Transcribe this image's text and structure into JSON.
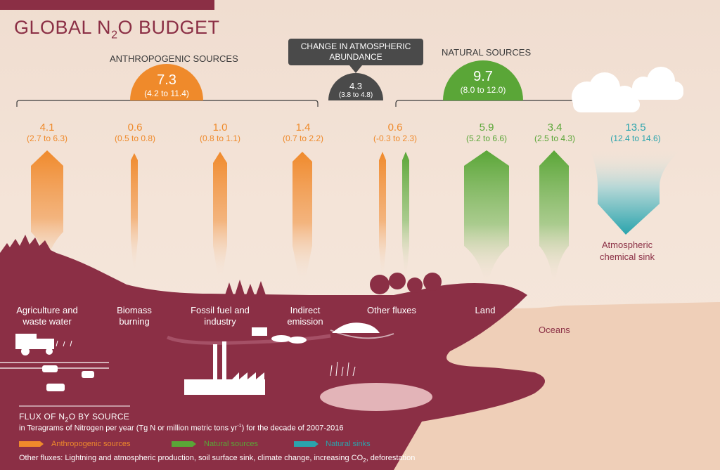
{
  "title": {
    "main": "GLOBAL N",
    "sub": "2",
    "rest": "O BUDGET"
  },
  "groups": {
    "anthropogenic": {
      "label": "ANTHROPOGENIC SOURCES",
      "value": "7.3",
      "range": "(4.2 to 11.4)"
    },
    "natural": {
      "label": "NATURAL SOURCES",
      "value": "9.7",
      "range": "(8.0 to 12.0)"
    },
    "change": {
      "label": "CHANGE IN ATMOSPHERIC ABUNDANCE",
      "value": "4.3",
      "range": "(3.8 to 4.8)"
    }
  },
  "fluxes": [
    {
      "id": "agriculture",
      "value": "4.1",
      "range": "(2.7 to 6.3)",
      "label": "Agriculture and\nwaste water",
      "type": "anthropogenic",
      "num": 4.1
    },
    {
      "id": "biomass",
      "value": "0.6",
      "range": "(0.5 to 0.8)",
      "label": "Biomass\nburning",
      "type": "anthropogenic",
      "num": 0.6
    },
    {
      "id": "fossil",
      "value": "1.0",
      "range": "(0.8 to 1.1)",
      "label": "Fossil fuel and\nindustry",
      "type": "anthropogenic",
      "num": 1.0
    },
    {
      "id": "indirect",
      "value": "1.4",
      "range": "(0.7 to 2.2)",
      "label": "Indirect\nemission",
      "type": "anthropogenic",
      "num": 1.4
    },
    {
      "id": "other",
      "value": "0.6",
      "range": "(-0.3 to 2.3)",
      "label": "Other fluxes",
      "type": "mixed",
      "num": 0.6
    },
    {
      "id": "land",
      "value": "5.9",
      "range": "(5.2 to 6.6)",
      "label": "Land",
      "type": "natural",
      "num": 5.9
    },
    {
      "id": "oceans",
      "value": "3.4",
      "range": "(2.5 to 4.3)",
      "label": "Oceans",
      "type": "natural",
      "num": 3.4
    },
    {
      "id": "sink",
      "value": "13.5",
      "range": "(12.4 to 14.6)",
      "label": "Atmospheric\nchemical sink",
      "type": "sink",
      "num": 13.5
    }
  ],
  "legend": {
    "title_pre": "FLUX OF N",
    "title_sub": "2",
    "title_post": "O BY SOURCE",
    "units_pre": "in Teragrams of Nitrogen per year (Tg N or million metric tons yr",
    "units_sup": "-1",
    "units_post": ") for the decade of 2007-2016",
    "items": [
      "Anthropogenic sources",
      "Natural sources",
      "Natural sinks"
    ],
    "note_pre": "Other fluxes: Lightning and atmospheric production, soil surface sink, climate change, increasing CO",
    "note_sub": "2",
    "note_post": ", deforestation"
  },
  "colors": {
    "anthropogenic": "#ef8a2b",
    "natural": "#5aa637",
    "sink": "#2aa4ad",
    "land": "#8b2f45",
    "change": "#4a4a4a",
    "background": "#f2e0d2"
  }
}
